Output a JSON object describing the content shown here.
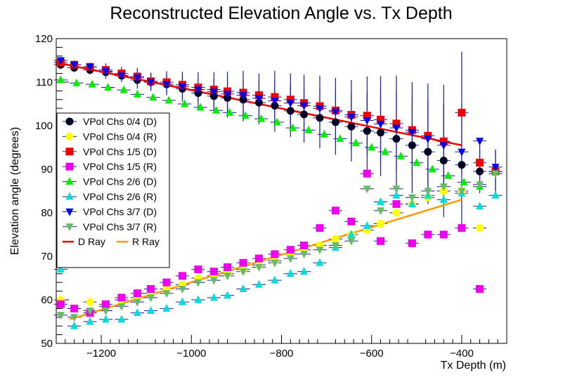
{
  "chart_data": {
    "type": "scatter",
    "title": "Reconstructed Elevation Angle vs. Tx Depth",
    "xlabel": "Tx Depth (m)",
    "ylabel": "Elevation angle (degrees)",
    "xlim": [
      -1300,
      -300
    ],
    "ylim": [
      50,
      120
    ],
    "x_ticks": [
      -1200,
      -1000,
      -800,
      -600,
      -400
    ],
    "x_tick_labels": [
      "−1200",
      "−1000",
      "−800",
      "−600",
      "−400"
    ],
    "y_ticks": [
      50,
      60,
      70,
      80,
      90,
      100,
      110,
      120
    ],
    "y_tick_labels": [
      "50",
      "60",
      "70",
      "80",
      "90",
      "100",
      "110",
      "120"
    ],
    "legend_position": "left",
    "x_error": 15,
    "series": [
      {
        "name": "VPol Chs 0/4 (D)",
        "marker": "circle",
        "color": "#000022",
        "x": [
          -1290,
          -1260,
          -1225,
          -1190,
          -1155,
          -1120,
          -1090,
          -1055,
          -1020,
          -985,
          -950,
          -920,
          -885,
          -850,
          -815,
          -780,
          -750,
          -715,
          -680,
          -645,
          -610,
          -580,
          -545,
          -510,
          -475,
          -440,
          -400,
          -360,
          -325
        ],
        "y": [
          114,
          113.3,
          112.8,
          112.3,
          111.5,
          110.5,
          110,
          109.5,
          108.5,
          107.5,
          106.8,
          106.4,
          106,
          105.3,
          104.6,
          103.4,
          102.6,
          101.8,
          100.8,
          99.8,
          98.8,
          98.4,
          97,
          95.5,
          94,
          92,
          91,
          89.5,
          89.5
        ],
        "err": [
          1,
          1,
          1,
          1.5,
          1.5,
          2,
          2,
          2.5,
          3,
          3.5,
          4,
          4.5,
          5,
          5,
          6,
          6,
          6.5,
          7,
          7.5,
          8,
          9,
          10,
          11,
          11,
          12,
          13,
          14,
          5,
          5
        ]
      },
      {
        "name": "VPol Chs 0/4 (R)",
        "marker": "circle",
        "color": "#ffff00",
        "x": [
          -1290,
          -1260,
          -1225,
          -1190,
          -1155,
          -1120,
          -1090,
          -1055,
          -1020,
          -985,
          -950,
          -920,
          -885,
          -850,
          -815,
          -780,
          -750,
          -715,
          -680,
          -645,
          -610,
          -580,
          -545,
          -510,
          -475,
          -440,
          -400,
          -360
        ],
        "y": [
          60,
          58,
          59.5,
          58.5,
          60,
          60.5,
          61.5,
          62.5,
          63.5,
          65,
          65.5,
          66,
          67,
          68,
          69,
          70.5,
          71.5,
          72.5,
          74,
          75,
          76,
          77.5,
          80,
          82,
          83.5,
          85,
          85,
          76.5
        ],
        "err": []
      },
      {
        "name": "VPol Chs 1/5 (D)",
        "marker": "square",
        "color": "#ee0000",
        "x": [
          -1290,
          -1260,
          -1225,
          -1190,
          -1155,
          -1120,
          -1090,
          -1055,
          -1020,
          -985,
          -950,
          -920,
          -885,
          -850,
          -815,
          -780,
          -750,
          -715,
          -680,
          -645,
          -610,
          -580,
          -545,
          -510,
          -475,
          -440,
          -400,
          -360,
          -325
        ],
        "y": [
          114.5,
          114,
          113.5,
          112.8,
          112,
          111.3,
          110.2,
          110,
          109.4,
          108.8,
          108.3,
          107.9,
          107.6,
          107,
          106.6,
          106,
          105.2,
          104.5,
          103.5,
          102.5,
          102.3,
          101.4,
          100.5,
          99,
          97.7,
          96.4,
          103,
          91.5,
          89.5
        ],
        "err": [
          1,
          1,
          1,
          1.5,
          1.5,
          2,
          2,
          2.5,
          3,
          3.5,
          4,
          4.5,
          5,
          5,
          6,
          6,
          6.5,
          7,
          7.5,
          8,
          9,
          10,
          11,
          11,
          12,
          13,
          14,
          5,
          5
        ]
      },
      {
        "name": "VPol Chs 1/5 (R)",
        "marker": "square",
        "color": "#ee00ee",
        "x": [
          -1290,
          -1260,
          -1225,
          -1190,
          -1155,
          -1120,
          -1090,
          -1055,
          -1020,
          -985,
          -950,
          -920,
          -885,
          -850,
          -815,
          -780,
          -750,
          -715,
          -680,
          -645,
          -610,
          -580,
          -545,
          -510,
          -475,
          -440,
          -400,
          -360
        ],
        "y": [
          59,
          58,
          57,
          59,
          60.5,
          61.5,
          62.5,
          64,
          65.5,
          67,
          66.5,
          67.5,
          68.5,
          69.5,
          70.5,
          71.5,
          72.5,
          76.5,
          80.5,
          78,
          89,
          73.5,
          82,
          73,
          75,
          75,
          76.5,
          62.5
        ],
        "err": []
      },
      {
        "name": "VPol Chs 2/6 (D)",
        "marker": "triangle-up",
        "color": "#00ee00",
        "x": [
          -1290,
          -1255,
          -1220,
          -1185,
          -1150,
          -1120,
          -1085,
          -1050,
          -1015,
          -980,
          -945,
          -915,
          -880,
          -845,
          -810,
          -775,
          -740,
          -705,
          -670,
          -635,
          -600,
          -570,
          -535,
          -500,
          -465,
          -430,
          -395,
          -360,
          -325
        ],
        "y": [
          110.5,
          109.8,
          109.5,
          108.8,
          108.2,
          107.2,
          106.5,
          105.8,
          105,
          104.2,
          103.5,
          103,
          102.3,
          101.6,
          100.8,
          99.5,
          99,
          98,
          97,
          96,
          95,
          94,
          93,
          91.5,
          90,
          88.5,
          87,
          86,
          89.5
        ],
        "err": []
      },
      {
        "name": "VPol Chs 2/6 (R)",
        "marker": "triangle-up",
        "color": "#00dddd",
        "x": [
          -1290,
          -1260,
          -1225,
          -1190,
          -1155,
          -1120,
          -1090,
          -1055,
          -1020,
          -985,
          -950,
          -920,
          -885,
          -850,
          -815,
          -780,
          -750,
          -715,
          -680,
          -645,
          -610,
          -580,
          -545,
          -510,
          -475,
          -440,
          -400,
          -360,
          -325
        ],
        "y": [
          67,
          54,
          55,
          55.5,
          55.5,
          57,
          57.5,
          58,
          59.5,
          60,
          60.5,
          61,
          62.5,
          63.5,
          64.5,
          66,
          66.5,
          68.5,
          72,
          75,
          77,
          82.5,
          84,
          82,
          84,
          83,
          84.5,
          81.5,
          84
        ],
        "err": []
      },
      {
        "name": "VPol Chs 3/7 (D)",
        "marker": "triangle-down",
        "color": "#0000ee",
        "x": [
          -1290,
          -1260,
          -1225,
          -1190,
          -1155,
          -1120,
          -1090,
          -1055,
          -1020,
          -985,
          -950,
          -920,
          -885,
          -850,
          -815,
          -780,
          -750,
          -715,
          -680,
          -645,
          -610,
          -580,
          -545,
          -510,
          -475,
          -440,
          -400,
          -360,
          -325
        ],
        "y": [
          115,
          114,
          113.5,
          112.5,
          111.5,
          111,
          110,
          109.5,
          109,
          108.3,
          107.8,
          107.3,
          107,
          106.3,
          105.7,
          105.2,
          104.6,
          104,
          103.2,
          102,
          101.2,
          100.4,
          99.5,
          98.5,
          97,
          95.5,
          94,
          96.5,
          90.5
        ],
        "err": []
      },
      {
        "name": "VPol Chs 3/7 (R)",
        "marker": "triangle-down",
        "color": "#66bb66",
        "x": [
          -1290,
          -1260,
          -1225,
          -1190,
          -1155,
          -1120,
          -1090,
          -1055,
          -1020,
          -985,
          -950,
          -920,
          -885,
          -850,
          -815,
          -780,
          -750,
          -715,
          -680,
          -645,
          -610,
          -580,
          -545,
          -510,
          -475,
          -440,
          -400,
          -360,
          -325
        ],
        "y": [
          56.5,
          56,
          57.5,
          57.5,
          58.5,
          59.5,
          60.5,
          61.5,
          62.5,
          64,
          64.5,
          65.5,
          66.5,
          67.5,
          68.5,
          69.5,
          70.5,
          71.5,
          72.5,
          73.5,
          85.5,
          80.5,
          85.5,
          83.5,
          85,
          86,
          85,
          86.5,
          89
        ],
        "err": []
      },
      {
        "name": "D Ray",
        "type": "line",
        "color": "#ee0000",
        "x": [
          -1300,
          -400
        ],
        "y": [
          114.5,
          95.5
        ]
      },
      {
        "name": "R Ray",
        "type": "line",
        "color": "#ff9900",
        "x": [
          -1270,
          -400
        ],
        "y": [
          55.5,
          83
        ]
      }
    ]
  }
}
